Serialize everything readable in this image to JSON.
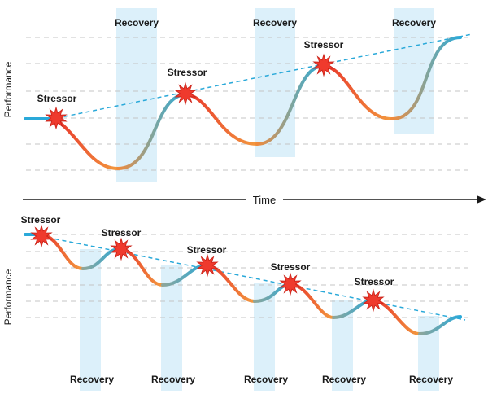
{
  "top": {
    "axis_label": "Performance",
    "recovery_label": "Recovery",
    "stressor_label": "Stressor"
  },
  "time_axis": {
    "label": "Time"
  },
  "bottom": {
    "axis_label": "Performance",
    "recovery_label": "Recovery",
    "stressor_label": "Stressor"
  },
  "colors": {
    "stress_curve": "#ef4f2f",
    "recovery_curve": "#2aa9d9",
    "recovery_band": "#dcf0fa",
    "stressor_star": "#ef3a2d",
    "trend_line": "#2aa9d9"
  }
}
